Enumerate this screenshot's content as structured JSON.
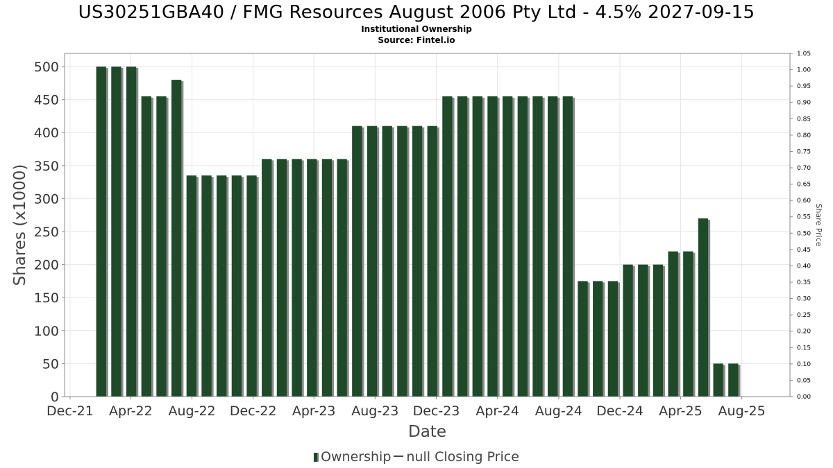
{
  "title": "US30251GBA40 / FMG Resources August 2006 Pty Ltd - 4.5% 2027-09-15",
  "subtitle": "Institutional Ownership",
  "source": "Source: Fintel.io",
  "legend": {
    "ownership": "Ownership",
    "price": "null Closing Price"
  },
  "colors": {
    "bar": "#1f4a2a",
    "bar_shadow": "#8a8a8a",
    "grid": "#e6e6e6",
    "axis": "#888888"
  },
  "chart_data": {
    "type": "bar",
    "title": "US30251GBA40 / FMG Resources August 2006 Pty Ltd - 4.5% 2027-09-15",
    "xlabel": "Date",
    "ylabel": "Shares (x1000)",
    "y2label": "Share Price",
    "ylim": [
      0,
      520
    ],
    "y2lim": [
      0,
      1.05
    ],
    "yticks": [
      0,
      50,
      100,
      150,
      200,
      250,
      300,
      350,
      400,
      450,
      500
    ],
    "y2ticks": [
      "0.00",
      "0.05",
      "0.10",
      "0.15",
      "0.20",
      "0.25",
      "0.30",
      "0.35",
      "0.40",
      "0.45",
      "0.50",
      "0.55",
      "0.60",
      "0.65",
      "0.70",
      "0.75",
      "0.80",
      "0.85",
      "0.90",
      "0.95",
      "1.00",
      "1.05"
    ],
    "xrange": [
      "2021-11-20",
      "2025-11-05"
    ],
    "xticks": [
      {
        "label": "Dec-21",
        "date": "2021-12-01"
      },
      {
        "label": "Apr-22",
        "date": "2022-04-01"
      },
      {
        "label": "Aug-22",
        "date": "2022-08-01"
      },
      {
        "label": "Dec-22",
        "date": "2022-12-01"
      },
      {
        "label": "Apr-23",
        "date": "2023-04-01"
      },
      {
        "label": "Aug-23",
        "date": "2023-08-01"
      },
      {
        "label": "Dec-23",
        "date": "2023-12-01"
      },
      {
        "label": "Apr-24",
        "date": "2024-04-01"
      },
      {
        "label": "Aug-24",
        "date": "2024-08-01"
      },
      {
        "label": "Dec-24",
        "date": "2024-12-01"
      },
      {
        "label": "Apr-25",
        "date": "2025-04-01"
      },
      {
        "label": "Aug-25",
        "date": "2025-08-01"
      }
    ],
    "grid": true,
    "legend_position": "bottom",
    "series": [
      {
        "name": "Ownership",
        "points": [
          {
            "date": "2022-02-01",
            "value": 500
          },
          {
            "date": "2022-03-03",
            "value": 500
          },
          {
            "date": "2022-04-02",
            "value": 500
          },
          {
            "date": "2022-05-02",
            "value": 455
          },
          {
            "date": "2022-06-01",
            "value": 455
          },
          {
            "date": "2022-07-01",
            "value": 480
          },
          {
            "date": "2022-07-31",
            "value": 335
          },
          {
            "date": "2022-08-30",
            "value": 335
          },
          {
            "date": "2022-09-29",
            "value": 335
          },
          {
            "date": "2022-10-29",
            "value": 335
          },
          {
            "date": "2022-11-28",
            "value": 335
          },
          {
            "date": "2022-12-28",
            "value": 360
          },
          {
            "date": "2023-01-27",
            "value": 360
          },
          {
            "date": "2023-02-26",
            "value": 360
          },
          {
            "date": "2023-03-28",
            "value": 360
          },
          {
            "date": "2023-04-27",
            "value": 360
          },
          {
            "date": "2023-05-27",
            "value": 360
          },
          {
            "date": "2023-06-26",
            "value": 410
          },
          {
            "date": "2023-07-26",
            "value": 410
          },
          {
            "date": "2023-08-25",
            "value": 410
          },
          {
            "date": "2023-09-24",
            "value": 410
          },
          {
            "date": "2023-10-24",
            "value": 410
          },
          {
            "date": "2023-11-23",
            "value": 410
          },
          {
            "date": "2023-12-23",
            "value": 455
          },
          {
            "date": "2024-01-22",
            "value": 455
          },
          {
            "date": "2024-02-21",
            "value": 455
          },
          {
            "date": "2024-03-22",
            "value": 455
          },
          {
            "date": "2024-04-21",
            "value": 455
          },
          {
            "date": "2024-05-21",
            "value": 455
          },
          {
            "date": "2024-06-20",
            "value": 455
          },
          {
            "date": "2024-07-20",
            "value": 455
          },
          {
            "date": "2024-08-19",
            "value": 455
          },
          {
            "date": "2024-09-18",
            "value": 175
          },
          {
            "date": "2024-10-18",
            "value": 175
          },
          {
            "date": "2024-11-17",
            "value": 175
          },
          {
            "date": "2024-12-17",
            "value": 200
          },
          {
            "date": "2025-01-16",
            "value": 200
          },
          {
            "date": "2025-02-15",
            "value": 200
          },
          {
            "date": "2025-03-17",
            "value": 220
          },
          {
            "date": "2025-04-16",
            "value": 220
          },
          {
            "date": "2025-05-16",
            "value": 270
          },
          {
            "date": "2025-06-15",
            "value": 50
          },
          {
            "date": "2025-07-15",
            "value": 50
          }
        ]
      }
    ]
  }
}
